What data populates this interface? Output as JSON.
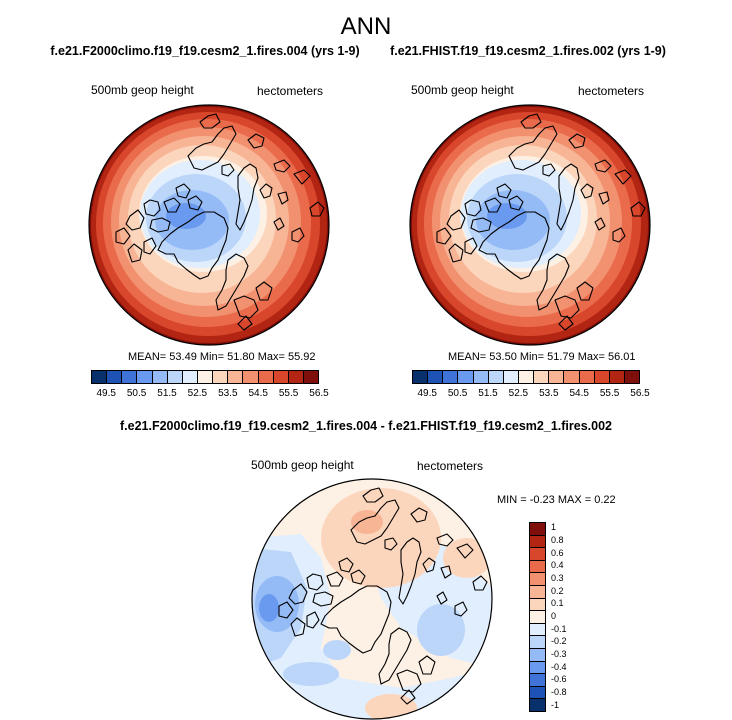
{
  "chart_data": [
    {
      "type": "heatmap",
      "projection": "north-polar-stereographic",
      "title": "f.e21.F2000climo.f19_f19.cesm2_1.fires.004 (yrs 1-9)",
      "left_label": "500mb geop height",
      "right_label": "hectometers",
      "stats": {
        "mean": "53.49",
        "min": "51.80",
        "max": "55.92"
      },
      "levels": [
        49.5,
        50,
        50.5,
        51,
        51.5,
        52,
        52.5,
        53,
        53.5,
        54,
        54.5,
        55,
        55.5,
        56,
        56.5
      ],
      "colorbar_ticks": [
        "49.5",
        "50.5",
        "51.5",
        "52.5",
        "53.5",
        "54.5",
        "55.5",
        "56.5"
      ]
    },
    {
      "type": "heatmap",
      "projection": "north-polar-stereographic",
      "title": "f.e21.FHIST.f19_f19.cesm2_1.fires.002 (yrs 1-9)",
      "left_label": "500mb geop height",
      "right_label": "hectometers",
      "stats": {
        "mean": "53.50",
        "min": "51.79",
        "max": "56.01"
      },
      "levels": [
        49.5,
        50,
        50.5,
        51,
        51.5,
        52,
        52.5,
        53,
        53.5,
        54,
        54.5,
        55,
        55.5,
        56,
        56.5
      ],
      "colorbar_ticks": [
        "49.5",
        "50.5",
        "51.5",
        "52.5",
        "53.5",
        "54.5",
        "55.5",
        "56.5"
      ]
    },
    {
      "type": "heatmap",
      "projection": "north-polar-stereographic",
      "title": "f.e21.F2000climo.f19_f19.cesm2_1.fires.004 - f.e21.FHIST.f19_f19.cesm2_1.fires.002",
      "left_label": "500mb geop height",
      "right_label": "hectometers",
      "stats_text": "MIN =  -0.23 MAX =  0.22",
      "levels": [
        -1,
        -0.8,
        -0.6,
        -0.4,
        -0.3,
        -0.2,
        -0.1,
        0,
        0.1,
        0.2,
        0.3,
        0.4,
        0.6,
        0.8,
        1
      ],
      "colorbar_ticks": [
        "1",
        "0.8",
        "0.6",
        "0.4",
        "0.3",
        "0.2",
        "0.1",
        "0",
        "-0.1",
        "-0.2",
        "-0.3",
        "-0.4",
        "-0.6",
        "-0.8",
        "-1"
      ]
    }
  ],
  "figure": {
    "title": "ANN",
    "mean_label": "MEAN=",
    "min_label": "Min=",
    "max_label": "Max="
  },
  "colors": {
    "field_scale": [
      "#08306b",
      "#1f52b5",
      "#3f73d8",
      "#6a9af0",
      "#95bbf7",
      "#bcd6fa",
      "#e1eefd",
      "#fdf0e4",
      "#fbd6bd",
      "#f8b595",
      "#f29170",
      "#ea6b4b",
      "#d8462c",
      "#b32513",
      "#7f0f0a"
    ],
    "diff_scale": [
      "#7f0f0a",
      "#b32513",
      "#d8462c",
      "#ea6b4b",
      "#f29170",
      "#f8b595",
      "#fbd6bd",
      "#fdf0e4",
      "#e1eefd",
      "#bcd6fa",
      "#95bbf7",
      "#6a9af0",
      "#3f73d8",
      "#1f52b5",
      "#08306b"
    ]
  }
}
